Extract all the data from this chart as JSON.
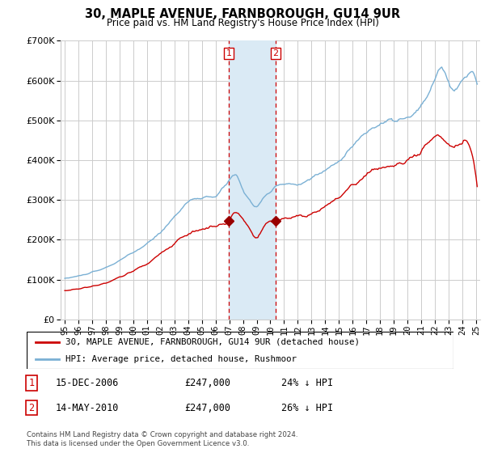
{
  "title": "30, MAPLE AVENUE, FARNBOROUGH, GU14 9UR",
  "subtitle": "Price paid vs. HM Land Registry's House Price Index (HPI)",
  "legend_line1": "30, MAPLE AVENUE, FARNBOROUGH, GU14 9UR (detached house)",
  "legend_line2": "HPI: Average price, detached house, Rushmoor",
  "footnote": "Contains HM Land Registry data © Crown copyright and database right 2024.\nThis data is licensed under the Open Government Licence v3.0.",
  "sale1_label": "1",
  "sale1_date": "15-DEC-2006",
  "sale1_price": "£247,000",
  "sale1_hpi": "24% ↓ HPI",
  "sale2_label": "2",
  "sale2_date": "14-MAY-2010",
  "sale2_price": "£247,000",
  "sale2_hpi": "26% ↓ HPI",
  "sale1_year": 2006.958,
  "sale2_year": 2010.37,
  "sale1_value": 247000,
  "sale2_value": 247000,
  "price_color": "#cc0000",
  "hpi_color": "#7ab0d4",
  "shading_color": "#daeaf5",
  "sale_marker_color": "#990000",
  "ylim_min": 0,
  "ylim_max": 700000,
  "xlim_min": 1994.7,
  "xlim_max": 2025.3,
  "background_color": "#ffffff",
  "grid_color": "#cccccc"
}
